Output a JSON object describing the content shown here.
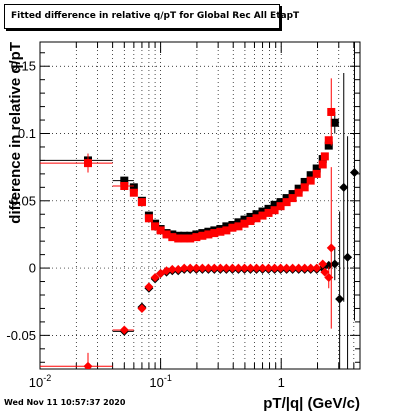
{
  "footer": "Wed Nov 11 10:57:37 2020",
  "chart_data": {
    "type": "scatter",
    "title": "Fitted difference in relative q/pT for Global Rec All EtapT",
    "xlabel": "pT/|q| (GeV/c)",
    "ylabel": "difference in relative q/pT",
    "xscale": "log",
    "xlim": [
      0.01,
      4.5
    ],
    "ylim": [
      -0.075,
      0.168
    ],
    "grid": true,
    "x_tick_labels": [
      {
        "value": 0.01,
        "base": "10",
        "exp": "-2"
      },
      {
        "value": 0.1,
        "base": "10",
        "exp": "-1"
      },
      {
        "value": 1,
        "text": "1"
      }
    ],
    "y_ticks": [
      {
        "value": -0.05,
        "label": "-0.05"
      },
      {
        "value": 0,
        "label": "0"
      },
      {
        "value": 0.05,
        "label": "0.05"
      },
      {
        "value": 0.1,
        "label": "0.1"
      },
      {
        "value": 0.15,
        "label": "0.15"
      }
    ],
    "series": [
      {
        "color": "#000000",
        "marker": "square",
        "points": [
          {
            "x": 0.025,
            "y": 0.08,
            "xlo": 0.01,
            "xhi": 0.04,
            "err": 0.005
          },
          {
            "x": 0.05,
            "y": 0.065,
            "xlo": 0.04,
            "xhi": 0.06,
            "err": 0.002
          },
          {
            "x": 0.06,
            "y": 0.06
          },
          {
            "x": 0.07,
            "y": 0.05
          },
          {
            "x": 0.08,
            "y": 0.039
          },
          {
            "x": 0.09,
            "y": 0.033
          },
          {
            "x": 0.1,
            "y": 0.029
          },
          {
            "x": 0.112,
            "y": 0.026
          },
          {
            "x": 0.125,
            "y": 0.025
          },
          {
            "x": 0.14,
            "y": 0.024
          },
          {
            "x": 0.157,
            "y": 0.024
          },
          {
            "x": 0.176,
            "y": 0.024
          },
          {
            "x": 0.198,
            "y": 0.025
          },
          {
            "x": 0.222,
            "y": 0.026
          },
          {
            "x": 0.249,
            "y": 0.027
          },
          {
            "x": 0.279,
            "y": 0.028
          },
          {
            "x": 0.313,
            "y": 0.029
          },
          {
            "x": 0.351,
            "y": 0.031
          },
          {
            "x": 0.394,
            "y": 0.032
          },
          {
            "x": 0.442,
            "y": 0.034
          },
          {
            "x": 0.496,
            "y": 0.036
          },
          {
            "x": 0.556,
            "y": 0.038
          },
          {
            "x": 0.624,
            "y": 0.04
          },
          {
            "x": 0.7,
            "y": 0.042
          },
          {
            "x": 0.785,
            "y": 0.044
          },
          {
            "x": 0.881,
            "y": 0.047
          },
          {
            "x": 0.988,
            "y": 0.049
          },
          {
            "x": 1.108,
            "y": 0.052
          },
          {
            "x": 1.243,
            "y": 0.055
          },
          {
            "x": 1.395,
            "y": 0.059
          },
          {
            "x": 1.565,
            "y": 0.064
          },
          {
            "x": 1.755,
            "y": 0.069
          },
          {
            "x": 1.969,
            "y": 0.074
          },
          {
            "x": 2.209,
            "y": 0.081
          },
          {
            "x": 2.478,
            "y": 0.091
          },
          {
            "x": 2.78,
            "y": 0.108,
            "err": 0.008
          }
        ]
      },
      {
        "color": "#ff0000",
        "marker": "square",
        "points": [
          {
            "x": 0.025,
            "y": 0.078,
            "xlo": 0.01,
            "xhi": 0.04,
            "err": 0.007
          },
          {
            "x": 0.05,
            "y": 0.061,
            "xlo": 0.04,
            "xhi": 0.06,
            "err": 0.003
          },
          {
            "x": 0.06,
            "y": 0.056
          },
          {
            "x": 0.07,
            "y": 0.049
          },
          {
            "x": 0.08,
            "y": 0.037
          },
          {
            "x": 0.09,
            "y": 0.031
          },
          {
            "x": 0.1,
            "y": 0.028
          },
          {
            "x": 0.112,
            "y": 0.025
          },
          {
            "x": 0.125,
            "y": 0.023
          },
          {
            "x": 0.14,
            "y": 0.022
          },
          {
            "x": 0.157,
            "y": 0.022
          },
          {
            "x": 0.176,
            "y": 0.022
          },
          {
            "x": 0.198,
            "y": 0.023
          },
          {
            "x": 0.222,
            "y": 0.024
          },
          {
            "x": 0.249,
            "y": 0.025
          },
          {
            "x": 0.279,
            "y": 0.026
          },
          {
            "x": 0.313,
            "y": 0.027
          },
          {
            "x": 0.351,
            "y": 0.028
          },
          {
            "x": 0.394,
            "y": 0.03
          },
          {
            "x": 0.442,
            "y": 0.031
          },
          {
            "x": 0.496,
            "y": 0.033
          },
          {
            "x": 0.556,
            "y": 0.035
          },
          {
            "x": 0.624,
            "y": 0.037
          },
          {
            "x": 0.7,
            "y": 0.039
          },
          {
            "x": 0.785,
            "y": 0.041
          },
          {
            "x": 0.881,
            "y": 0.043
          },
          {
            "x": 0.988,
            "y": 0.046
          },
          {
            "x": 1.108,
            "y": 0.049
          },
          {
            "x": 1.243,
            "y": 0.052
          },
          {
            "x": 1.395,
            "y": 0.056
          },
          {
            "x": 1.565,
            "y": 0.06
          },
          {
            "x": 1.755,
            "y": 0.065
          },
          {
            "x": 1.969,
            "y": 0.07
          },
          {
            "x": 2.209,
            "y": 0.077
          },
          {
            "x": 2.3,
            "y": 0.083
          },
          {
            "x": 2.478,
            "y": 0.095
          },
          {
            "x": 2.6,
            "y": 0.116,
            "err": 0.025
          }
        ]
      },
      {
        "color": "#000000",
        "marker": "diamond",
        "points": [
          {
            "x": 0.05,
            "y": -0.047,
            "xlo": 0.04,
            "xhi": 0.06,
            "err": 0.002
          },
          {
            "x": 0.07,
            "y": -0.029
          },
          {
            "x": 0.08,
            "y": -0.015
          },
          {
            "x": 0.09,
            "y": -0.008
          },
          {
            "x": 0.1,
            "y": -0.004
          },
          {
            "x": 0.112,
            "y": -0.003
          },
          {
            "x": 0.125,
            "y": -0.002
          },
          {
            "x": 0.14,
            "y": -0.002
          },
          {
            "x": 0.157,
            "y": -0.001
          },
          {
            "x": 0.176,
            "y": -0.001
          },
          {
            "x": 0.198,
            "y": -0.001
          },
          {
            "x": 0.222,
            "y": -0.001
          },
          {
            "x": 0.249,
            "y": -0.001
          },
          {
            "x": 0.279,
            "y": -0.001
          },
          {
            "x": 0.313,
            "y": -0.001
          },
          {
            "x": 0.351,
            "y": -0.001
          },
          {
            "x": 0.394,
            "y": -0.001
          },
          {
            "x": 0.442,
            "y": -0.001
          },
          {
            "x": 0.496,
            "y": -0.001
          },
          {
            "x": 0.556,
            "y": -0.001
          },
          {
            "x": 0.624,
            "y": -0.001
          },
          {
            "x": 0.7,
            "y": -0.001
          },
          {
            "x": 0.785,
            "y": -0.001
          },
          {
            "x": 0.881,
            "y": -0.001
          },
          {
            "x": 0.988,
            "y": -0.001
          },
          {
            "x": 1.108,
            "y": -0.001
          },
          {
            "x": 1.243,
            "y": -0.001
          },
          {
            "x": 1.395,
            "y": -0.001
          },
          {
            "x": 1.565,
            "y": -0.001
          },
          {
            "x": 1.755,
            "y": -0.001
          },
          {
            "x": 1.969,
            "y": -0.001
          },
          {
            "x": 2.209,
            "y": 0.0
          },
          {
            "x": 2.478,
            "y": 0.002
          },
          {
            "x": 2.78,
            "y": 0.003,
            "err": 0.012
          },
          {
            "x": 3.05,
            "y": -0.023,
            "err": 0.065
          },
          {
            "x": 3.3,
            "y": 0.06,
            "err": 0.085
          },
          {
            "x": 3.55,
            "y": 0.008,
            "err": 0.09
          },
          {
            "x": 4.05,
            "y": 0.071,
            "err": 0.11
          }
        ]
      },
      {
        "color": "#ff0000",
        "marker": "diamond",
        "points": [
          {
            "x": 0.025,
            "y": -0.073,
            "xlo": 0.01,
            "xhi": 0.04,
            "err": 0.01
          },
          {
            "x": 0.05,
            "y": -0.046,
            "xlo": 0.04,
            "xhi": 0.06,
            "err": 0.003
          },
          {
            "x": 0.07,
            "y": -0.03
          },
          {
            "x": 0.08,
            "y": -0.014
          },
          {
            "x": 0.09,
            "y": -0.007
          },
          {
            "x": 0.1,
            "y": -0.004
          },
          {
            "x": 0.112,
            "y": -0.002
          },
          {
            "x": 0.125,
            "y": -0.001
          },
          {
            "x": 0.14,
            "y": -0.001
          },
          {
            "x": 0.157,
            "y": 0.0
          },
          {
            "x": 0.176,
            "y": 0.0
          },
          {
            "x": 0.198,
            "y": 0.0
          },
          {
            "x": 0.222,
            "y": 0.0
          },
          {
            "x": 0.249,
            "y": 0.0
          },
          {
            "x": 0.279,
            "y": 0.0
          },
          {
            "x": 0.313,
            "y": 0.0
          },
          {
            "x": 0.351,
            "y": 0.0
          },
          {
            "x": 0.394,
            "y": 0.0
          },
          {
            "x": 0.442,
            "y": 0.0
          },
          {
            "x": 0.496,
            "y": 0.0
          },
          {
            "x": 0.556,
            "y": 0.0
          },
          {
            "x": 0.624,
            "y": 0.0
          },
          {
            "x": 0.7,
            "y": 0.0
          },
          {
            "x": 0.785,
            "y": 0.0
          },
          {
            "x": 0.881,
            "y": 0.0
          },
          {
            "x": 0.988,
            "y": 0.0
          },
          {
            "x": 1.108,
            "y": 0.0
          },
          {
            "x": 1.243,
            "y": 0.0
          },
          {
            "x": 1.395,
            "y": 0.0
          },
          {
            "x": 1.565,
            "y": 0.0
          },
          {
            "x": 1.755,
            "y": 0.0
          },
          {
            "x": 1.969,
            "y": 0.0
          },
          {
            "x": 2.209,
            "y": 0.003
          },
          {
            "x": 2.3,
            "y": -0.003
          },
          {
            "x": 2.478,
            "y": -0.007,
            "err": 0.008
          },
          {
            "x": 2.6,
            "y": 0.015,
            "err": 0.06
          }
        ]
      }
    ]
  }
}
